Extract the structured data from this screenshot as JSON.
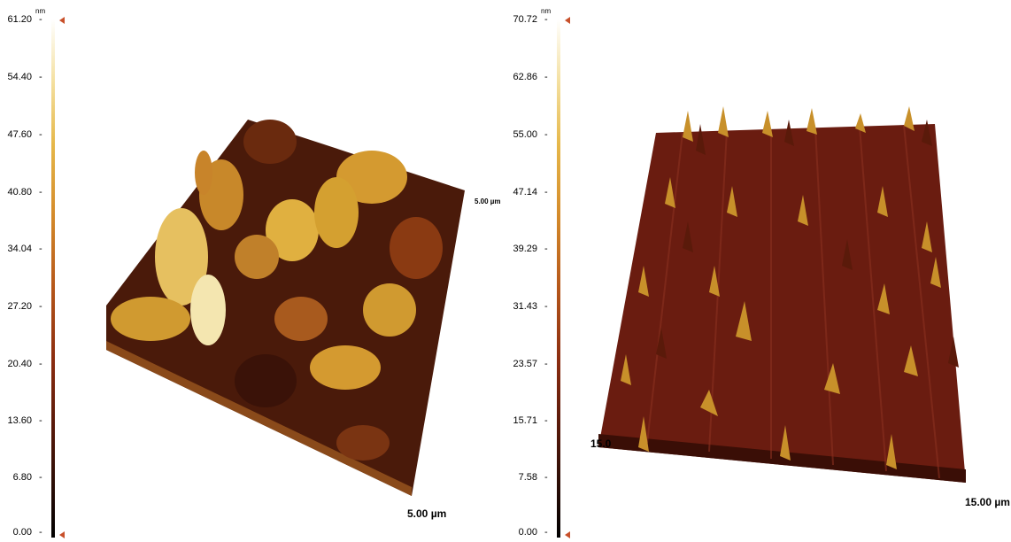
{
  "panels": [
    {
      "unit": "nm",
      "ticks": [
        "61.20",
        "54.40",
        "47.60",
        "40.80",
        "34.04",
        "27.20",
        "20.40",
        "13.60",
        "6.80",
        "0.00"
      ],
      "axis_label_bottom": "5.00 µm",
      "axis_label_side": "5.00 µm"
    },
    {
      "unit": "nm",
      "ticks": [
        "70.72",
        "62.86",
        "55.00",
        "47.14",
        "39.29",
        "31.43",
        "23.57",
        "15.71",
        "7.58",
        "0.00"
      ],
      "axis_label_bottom": "15.00 µm",
      "axis_label_side": "15.0"
    }
  ],
  "colors": {
    "marker": "#c8502a",
    "surface_dark": "#3a0e06",
    "surface_mid": "#8a2c10",
    "surface_light": "#e0a83a"
  }
}
